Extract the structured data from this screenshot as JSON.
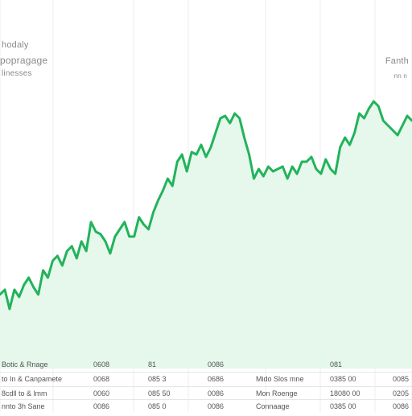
{
  "header": {
    "left_line1": "hodaly",
    "left_line2": "popragage",
    "left_line3": "linesses",
    "right_line1": "Fanth",
    "right_line2": "nn n"
  },
  "chart_data": {
    "type": "area",
    "title": "",
    "xlabel": "",
    "ylabel": "",
    "grid": true,
    "legend": "none",
    "line_color": "#22b35a",
    "fill_color": "#e6f7ec",
    "x": [
      0,
      1,
      2,
      3,
      4,
      5,
      6,
      7,
      8,
      9,
      10,
      11,
      12,
      13,
      14,
      15,
      16,
      17,
      18,
      19,
      20,
      21,
      22,
      23,
      24,
      25,
      26,
      27,
      28,
      29,
      30,
      31,
      32,
      33,
      34,
      35,
      36,
      37,
      38,
      39,
      40,
      41,
      42,
      43,
      44,
      45,
      46,
      47,
      48,
      49,
      50,
      51,
      52,
      53,
      54,
      55,
      56,
      57,
      58,
      59,
      60,
      61,
      62,
      63,
      64,
      65,
      66,
      67,
      68,
      69,
      70,
      71,
      72,
      73,
      74,
      75,
      76,
      77,
      78,
      79,
      80,
      81,
      82,
      83,
      84,
      85,
      86
    ],
    "y": [
      18,
      20,
      12,
      20,
      17,
      22,
      25,
      21,
      18,
      28,
      25,
      32,
      34,
      30,
      36,
      38,
      33,
      40,
      36,
      48,
      44,
      43,
      40,
      35,
      42,
      45,
      48,
      42,
      42,
      50,
      47,
      45,
      52,
      57,
      61,
      66,
      63,
      73,
      76,
      69,
      77,
      76,
      80,
      75,
      79,
      85,
      91,
      92,
      89,
      93,
      91,
      83,
      76,
      66,
      70,
      67,
      71,
      69,
      70,
      71,
      66,
      71,
      68,
      73,
      73,
      75,
      70,
      68,
      74,
      70,
      68,
      79,
      83,
      80,
      85,
      93,
      91,
      95,
      98,
      96,
      90,
      88,
      86,
      84,
      88,
      92,
      90
    ]
  },
  "table": {
    "rows": [
      [
        "Botic & Rnage",
        "0608",
        "81",
        "0086",
        "",
        "081",
        ""
      ],
      [
        "to In & Canpamete",
        "0068",
        "085 3",
        "0686",
        "Mido Slos mne",
        "0385 00",
        "0085"
      ],
      [
        "8cdll to & lmm",
        "0060",
        "085 50",
        "0086",
        "Mon Roenge",
        "18080 00",
        "0205"
      ],
      [
        "nnto 3h Sane",
        "0086",
        "085 0",
        "0086",
        "Connaage",
        "0385 00",
        "0086"
      ]
    ]
  }
}
